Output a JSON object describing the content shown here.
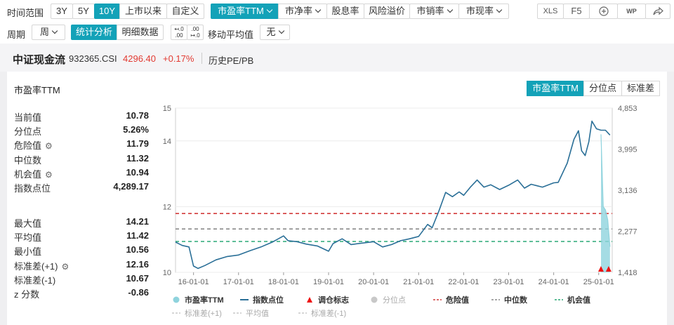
{
  "toolbar": {
    "range_label": "时间范围",
    "ranges": [
      "3Y",
      "5Y",
      "10Y",
      "上市以来",
      "自定义"
    ],
    "active_range": "10Y",
    "metrics": [
      "市盈率TTM",
      "市净率",
      "股息率",
      "风险溢价",
      "市销率",
      "市现率"
    ],
    "active_metric": "市盈率TTM",
    "xls_label": "XLS",
    "f5_label": "F5",
    "wp_label": "WP",
    "period_label": "周期",
    "period_value": "周",
    "stat_tab": "统计分析",
    "detail_tab": "明细数据",
    "ma_label": "移动平均值",
    "ma_value": "无"
  },
  "header": {
    "name": "中证现金流",
    "code": "932365.CSI",
    "price": "4296.40",
    "change": "+0.17%",
    "history": "历史PE/PB"
  },
  "panel": {
    "title": "市盈率TTM",
    "tabs": [
      "市盈率TTM",
      "分位点",
      "标准差"
    ],
    "active_tab": "市盈率TTM",
    "stats_a": [
      {
        "k": "当前值",
        "v": "10.78"
      },
      {
        "k": "分位点",
        "v": "5.26%"
      },
      {
        "k": "危险值",
        "v": "11.79"
      },
      {
        "k": "中位数",
        "v": "11.32"
      },
      {
        "k": "机会值",
        "v": "10.94"
      },
      {
        "k": "指数点位",
        "v": "4,289.17"
      }
    ],
    "stats_b": [
      {
        "k": "最大值",
        "v": "14.21"
      },
      {
        "k": "平均值",
        "v": "11.42"
      },
      {
        "k": "最小值",
        "v": "10.56"
      },
      {
        "k": "标准差(+1)",
        "v": "12.16"
      },
      {
        "k": "标准差(-1)",
        "v": "10.67"
      },
      {
        "k": "z 分数",
        "v": "-0.86"
      }
    ]
  },
  "chart_data": {
    "type": "line",
    "y_left_ticks": [
      10,
      12,
      14,
      15
    ],
    "y_left_range": [
      10,
      15
    ],
    "y_right_ticks": [
      "1,418",
      "2,277",
      "3,136",
      "3,995",
      "4,853"
    ],
    "y_right_range": [
      1418,
      4853
    ],
    "x_ticks": [
      "16-01-01",
      "17-01-01",
      "18-01-01",
      "19-01-01",
      "20-01-01",
      "21-01-01",
      "22-01-01",
      "23-01-01",
      "24-01-01",
      "25-01-01"
    ],
    "x_range": [
      2015.6,
      2025.3
    ],
    "lines": {
      "danger": 11.79,
      "median": 11.32,
      "opportunity": 10.94
    },
    "series": [
      {
        "name": "指数点位",
        "color": "#2a6f97",
        "axis": "right",
        "points": [
          [
            2015.6,
            2050
          ],
          [
            2015.75,
            1980
          ],
          [
            2015.9,
            1950
          ],
          [
            2016.0,
            1550
          ],
          [
            2016.1,
            1500
          ],
          [
            2016.25,
            1560
          ],
          [
            2016.5,
            1680
          ],
          [
            2016.75,
            1750
          ],
          [
            2017.0,
            1780
          ],
          [
            2017.25,
            1870
          ],
          [
            2017.5,
            1950
          ],
          [
            2017.75,
            2050
          ],
          [
            2018.0,
            2180
          ],
          [
            2018.1,
            2080
          ],
          [
            2018.3,
            2060
          ],
          [
            2018.5,
            2010
          ],
          [
            2018.75,
            1970
          ],
          [
            2019.0,
            1860
          ],
          [
            2019.1,
            2020
          ],
          [
            2019.3,
            2120
          ],
          [
            2019.5,
            2000
          ],
          [
            2019.75,
            2030
          ],
          [
            2020.0,
            2060
          ],
          [
            2020.2,
            1950
          ],
          [
            2020.4,
            2000
          ],
          [
            2020.6,
            2080
          ],
          [
            2020.8,
            2120
          ],
          [
            2021.0,
            2170
          ],
          [
            2021.2,
            2420
          ],
          [
            2021.3,
            2350
          ],
          [
            2021.45,
            2700
          ],
          [
            2021.6,
            3090
          ],
          [
            2021.75,
            3000
          ],
          [
            2021.9,
            3100
          ],
          [
            2022.0,
            3030
          ],
          [
            2022.15,
            3200
          ],
          [
            2022.3,
            3350
          ],
          [
            2022.45,
            3200
          ],
          [
            2022.6,
            3250
          ],
          [
            2022.8,
            3150
          ],
          [
            2023.0,
            3240
          ],
          [
            2023.2,
            3350
          ],
          [
            2023.35,
            3180
          ],
          [
            2023.5,
            3260
          ],
          [
            2023.75,
            3200
          ],
          [
            2024.0,
            3290
          ],
          [
            2024.1,
            3300
          ],
          [
            2024.3,
            3700
          ],
          [
            2024.45,
            4200
          ],
          [
            2024.55,
            4380
          ],
          [
            2024.62,
            3960
          ],
          [
            2024.7,
            3860
          ],
          [
            2024.78,
            4150
          ],
          [
            2024.85,
            4580
          ],
          [
            2024.95,
            4420
          ],
          [
            2025.05,
            4390
          ],
          [
            2025.15,
            4390
          ],
          [
            2025.25,
            4290
          ]
        ]
      },
      {
        "name": "市盈率TTM",
        "color": "#8fd3dd",
        "axis": "left",
        "points": [
          [
            2025.05,
            14.2
          ],
          [
            2025.1,
            12.0
          ],
          [
            2025.15,
            11.9
          ],
          [
            2025.2,
            11.6
          ],
          [
            2025.25,
            10.78
          ]
        ]
      }
    ],
    "markers": [
      2025.05,
      2025.22
    ],
    "legend": [
      "市盈率TTM",
      "指数点位",
      "调仓标志",
      "分位点",
      "危险值",
      "中位数",
      "机会值",
      "标准差(+1)",
      "平均值",
      "标准差(-1)"
    ]
  }
}
